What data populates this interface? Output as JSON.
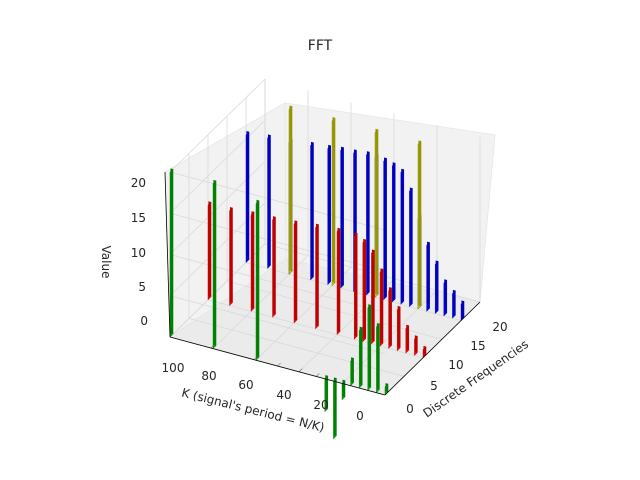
{
  "chart_data": {
    "type": "bar3d",
    "title": "FFT",
    "xlabel": "Discrete Frequencies",
    "ylabel": "K (signal's period = N/K)",
    "zlabel": "Value",
    "xticks": [
      "0",
      "5",
      "10",
      "15",
      "20"
    ],
    "yticks": [
      "0",
      "20",
      "40",
      "60",
      "80",
      "100"
    ],
    "zticks": [
      "0",
      "5",
      "10",
      "15",
      "20"
    ],
    "xlim": [
      0,
      25
    ],
    "ylim": [
      0,
      100
    ],
    "zlim": [
      0,
      20
    ],
    "grid": true,
    "series": [
      {
        "color": "#0000ff",
        "note_x": 20,
        "points": [
          [
            20,
            0,
            2
          ],
          [
            20,
            4,
            3
          ],
          [
            20,
            8,
            4
          ],
          [
            20,
            12,
            6
          ],
          [
            20,
            16,
            8
          ],
          [
            20,
            20,
            11
          ],
          [
            20,
            24,
            14
          ],
          [
            20,
            28,
            16
          ],
          [
            20,
            32,
            16.5
          ],
          [
            20,
            36,
            16.8
          ],
          [
            20,
            40,
            17
          ],
          [
            20,
            44,
            17
          ],
          [
            20,
            50,
            16.8
          ],
          [
            20,
            56,
            16.7
          ],
          [
            20,
            62,
            16.5
          ],
          [
            20,
            70,
            16.3
          ],
          [
            20,
            80,
            16
          ],
          [
            20,
            90,
            15.8
          ],
          [
            20,
            100,
            15.5
          ]
        ]
      },
      {
        "color": "#ff0000",
        "note_x": 10,
        "points": [
          [
            10,
            0,
            1
          ],
          [
            10,
            4,
            2
          ],
          [
            10,
            8,
            3
          ],
          [
            10,
            12,
            5
          ],
          [
            10,
            16,
            7
          ],
          [
            10,
            20,
            9
          ],
          [
            10,
            24,
            11
          ],
          [
            10,
            28,
            12
          ],
          [
            10,
            32,
            12.5
          ],
          [
            10,
            40,
            12.5
          ],
          [
            10,
            50,
            12.3
          ],
          [
            10,
            60,
            12
          ],
          [
            10,
            70,
            11.8
          ],
          [
            10,
            80,
            11.7
          ],
          [
            10,
            90,
            11.5
          ],
          [
            10,
            100,
            11.5
          ]
        ]
      },
      {
        "color": "#00aa00",
        "note_x": 0,
        "points": [
          [
            0,
            0,
            1
          ],
          [
            0,
            4,
            8
          ],
          [
            0,
            8,
            10
          ],
          [
            0,
            12,
            7
          ],
          [
            0,
            16,
            3
          ],
          [
            0,
            20,
            -2
          ],
          [
            0,
            24,
            -7
          ],
          [
            0,
            28,
            -4
          ],
          [
            0,
            32,
            0
          ],
          [
            0,
            40,
            0
          ],
          [
            0,
            50,
            0
          ],
          [
            0,
            60,
            19
          ],
          [
            0,
            61,
            0
          ],
          [
            0,
            80,
            20
          ],
          [
            0,
            81,
            0
          ],
          [
            0,
            100,
            20
          ]
        ]
      },
      {
        "color": "#c8c800",
        "note_x": 20,
        "points": [
          [
            20,
            40,
            20
          ],
          [
            20,
            60,
            20
          ],
          [
            20,
            80,
            20
          ],
          [
            20,
            20,
            20
          ]
        ]
      }
    ]
  }
}
